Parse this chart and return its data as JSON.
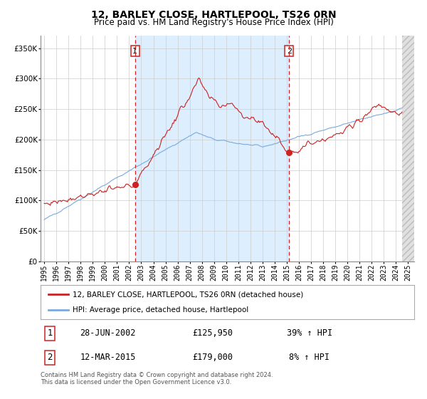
{
  "title": "12, BARLEY CLOSE, HARTLEPOOL, TS26 0RN",
  "subtitle": "Price paid vs. HM Land Registry's House Price Index (HPI)",
  "legend_line1": "12, BARLEY CLOSE, HARTLEPOOL, TS26 0RN (detached house)",
  "legend_line2": "HPI: Average price, detached house, Hartlepool",
  "sale1_label": "1",
  "sale1_date": "28-JUN-2002",
  "sale1_price": "£125,950",
  "sale1_hpi": "39% ↑ HPI",
  "sale1_x": 2002.49,
  "sale1_y": 125950,
  "sale2_label": "2",
  "sale2_date": "12-MAR-2015",
  "sale2_price": "£179,000",
  "sale2_hpi": "8% ↑ HPI",
  "sale2_x": 2015.19,
  "sale2_y": 179000,
  "ylim": [
    0,
    370000
  ],
  "xlim": [
    1994.7,
    2025.5
  ],
  "yticks": [
    0,
    50000,
    100000,
    150000,
    200000,
    250000,
    300000,
    350000
  ],
  "ytick_labels": [
    "£0",
    "£50K",
    "£100K",
    "£150K",
    "£200K",
    "£250K",
    "£300K",
    "£350K"
  ],
  "xticks": [
    1995,
    1996,
    1997,
    1998,
    1999,
    2000,
    2001,
    2002,
    2003,
    2004,
    2005,
    2006,
    2007,
    2008,
    2009,
    2010,
    2011,
    2012,
    2013,
    2014,
    2015,
    2016,
    2017,
    2018,
    2019,
    2020,
    2021,
    2022,
    2023,
    2024,
    2025
  ],
  "red_line_color": "#cc2222",
  "blue_line_color": "#7aaadd",
  "shaded_region_color": "#ddeeff",
  "hatch_color": "#dddddd",
  "grid_color": "#cccccc",
  "footnote": "Contains HM Land Registry data © Crown copyright and database right 2024.\nThis data is licensed under the Open Government Licence v3.0."
}
